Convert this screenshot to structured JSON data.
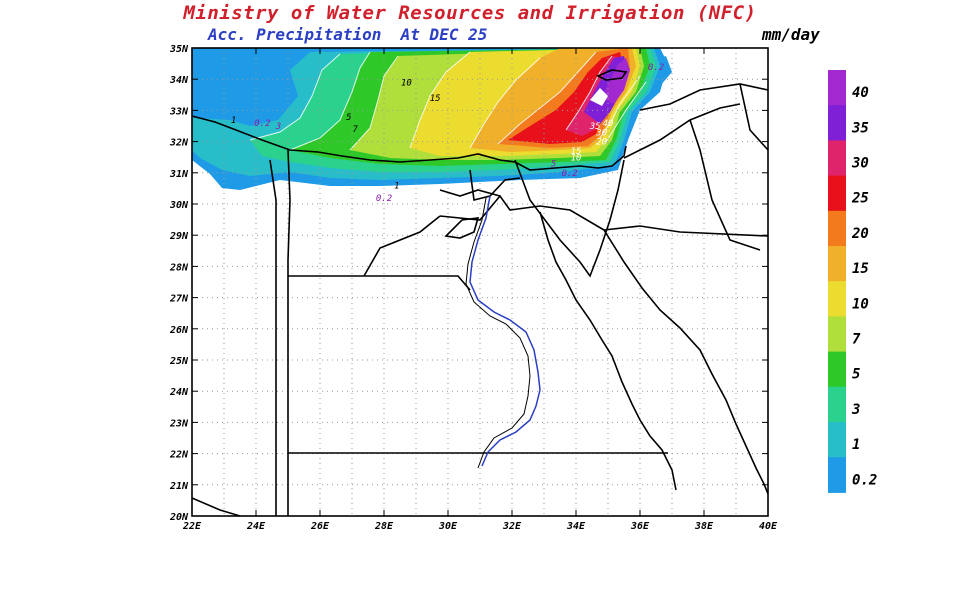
{
  "header": {
    "title": "Ministry of Water Resources and Irrigation (NFC)",
    "subtitle": "Acc. Precipitation  At DEC 25",
    "unit": "mm/day"
  },
  "map": {
    "lon_range": [
      22,
      40
    ],
    "lat_range": [
      20,
      35
    ],
    "lat_ticks": [
      "35N",
      "34N",
      "33N",
      "32N",
      "31N",
      "30N",
      "29N",
      "28N",
      "27N",
      "26N",
      "25N",
      "24N",
      "23N",
      "22N",
      "21N",
      "20N"
    ],
    "lon_ticks": [
      "22E",
      "24E",
      "26E",
      "28E",
      "30E",
      "32E",
      "34E",
      "36E",
      "38E",
      "40E"
    ],
    "grid": true,
    "contour_labels": [
      {
        "text": "0.2",
        "lon": 24.2,
        "lat": 32.5,
        "color": "#8a1fa8"
      },
      {
        "text": "3",
        "lon": 24.7,
        "lat": 32.4,
        "color": "#8a1fa8"
      },
      {
        "text": "1",
        "lon": 23.3,
        "lat": 32.6,
        "color": "#000000"
      },
      {
        "text": "5",
        "lon": 26.9,
        "lat": 32.7,
        "color": "#000000"
      },
      {
        "text": "7",
        "lon": 27.1,
        "lat": 32.3,
        "color": "#000000"
      },
      {
        "text": "10",
        "lon": 28.7,
        "lat": 33.8,
        "color": "#000000"
      },
      {
        "text": "15",
        "lon": 29.6,
        "lat": 33.3,
        "color": "#000000"
      },
      {
        "text": "1",
        "lon": 28.4,
        "lat": 30.5,
        "color": "#000000"
      },
      {
        "text": "0.2",
        "lon": 28.0,
        "lat": 30.1,
        "color": "#8a1fa8"
      },
      {
        "text": "5",
        "lon": 33.3,
        "lat": 31.2,
        "color": "#8a1fa8"
      },
      {
        "text": "0.2",
        "lon": 33.8,
        "lat": 30.9,
        "color": "#8a1fa8"
      },
      {
        "text": "15",
        "lon": 34.0,
        "lat": 31.6,
        "color": "#ffffff"
      },
      {
        "text": "10",
        "lon": 34.0,
        "lat": 31.4,
        "color": "#ffffff"
      },
      {
        "text": "20",
        "lon": 34.8,
        "lat": 31.9,
        "color": "#ffffff"
      },
      {
        "text": "30",
        "lon": 34.8,
        "lat": 32.2,
        "color": "#ffffff"
      },
      {
        "text": "35",
        "lon": 34.6,
        "lat": 32.4,
        "color": "#ffffff"
      },
      {
        "text": "40",
        "lon": 35.0,
        "lat": 32.5,
        "color": "#ffffff"
      },
      {
        "text": "0.2",
        "lon": 36.5,
        "lat": 34.3,
        "color": "#8a1fa8"
      }
    ]
  },
  "colorbar": {
    "labels": [
      "40",
      "35",
      "30",
      "25",
      "20",
      "15",
      "10",
      "7",
      "5",
      "3",
      "1",
      "0.2"
    ],
    "colors": [
      "#a228d0",
      "#7f1fd6",
      "#e0246c",
      "#e8101a",
      "#f47a1e",
      "#f0b02a",
      "#ecdc30",
      "#b0de3a",
      "#2fc829",
      "#2ad28e",
      "#27bec9",
      "#1e9ae6"
    ]
  }
}
